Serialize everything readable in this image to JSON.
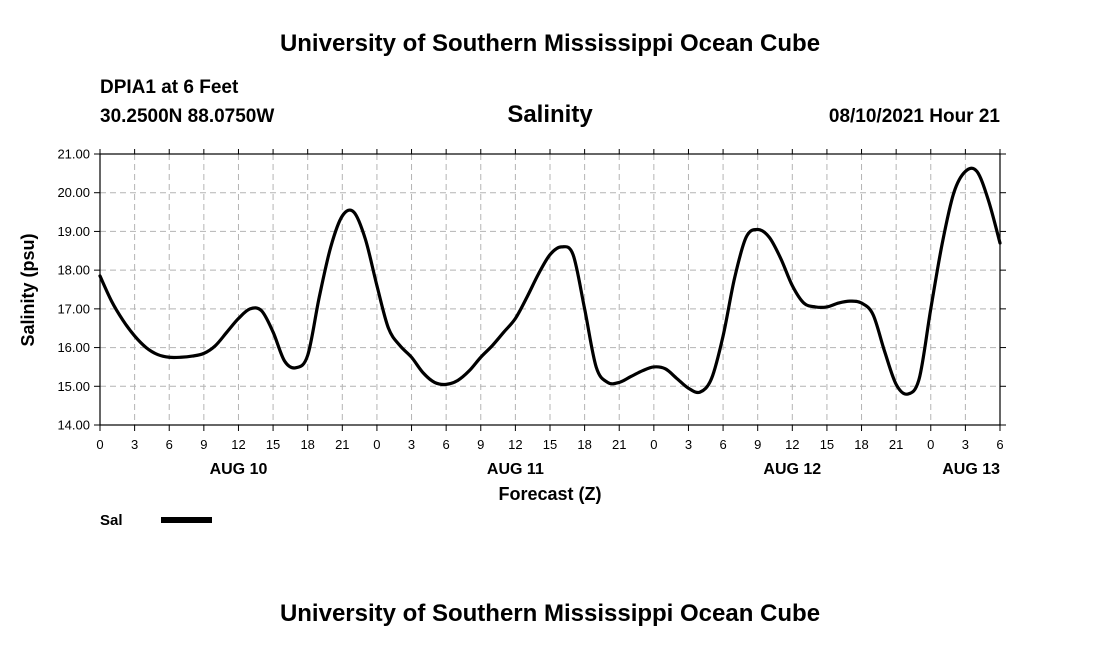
{
  "header": {
    "title": "University of Southern Mississippi Ocean Cube",
    "station": "DPIA1 at 6 Feet",
    "coordinates": "30.2500N  88.0750W",
    "chart_title": "Salinity",
    "timestamp": "08/10/2021 Hour 21"
  },
  "footer": {
    "title": "University of Southern Mississippi Ocean Cube"
  },
  "legend": {
    "label": "Sal"
  },
  "colors": {
    "line": "#000000",
    "grid": "#b4b4b4",
    "axis": "#000000",
    "background": "#ffffff"
  },
  "chart_data": {
    "type": "line",
    "title": "Salinity",
    "xlabel": "Forecast (Z)",
    "ylabel": "Salinity (psu)",
    "xlim": [
      0,
      78
    ],
    "ylim": [
      14.0,
      21.0
    ],
    "y_ticks": [
      "14.00",
      "15.00",
      "16.00",
      "17.00",
      "18.00",
      "19.00",
      "20.00",
      "21.00"
    ],
    "x_ticks": [
      {
        "x": 0,
        "label": "0"
      },
      {
        "x": 3,
        "label": "3"
      },
      {
        "x": 6,
        "label": "6"
      },
      {
        "x": 9,
        "label": "9"
      },
      {
        "x": 12,
        "label": "12"
      },
      {
        "x": 15,
        "label": "15"
      },
      {
        "x": 18,
        "label": "18"
      },
      {
        "x": 21,
        "label": "21"
      },
      {
        "x": 24,
        "label": "0"
      },
      {
        "x": 27,
        "label": "3"
      },
      {
        "x": 30,
        "label": "6"
      },
      {
        "x": 33,
        "label": "9"
      },
      {
        "x": 36,
        "label": "12"
      },
      {
        "x": 39,
        "label": "15"
      },
      {
        "x": 42,
        "label": "18"
      },
      {
        "x": 45,
        "label": "21"
      },
      {
        "x": 48,
        "label": "0"
      },
      {
        "x": 51,
        "label": "3"
      },
      {
        "x": 54,
        "label": "6"
      },
      {
        "x": 57,
        "label": "9"
      },
      {
        "x": 60,
        "label": "12"
      },
      {
        "x": 63,
        "label": "15"
      },
      {
        "x": 66,
        "label": "18"
      },
      {
        "x": 69,
        "label": "21"
      },
      {
        "x": 72,
        "label": "0"
      },
      {
        "x": 75,
        "label": "3"
      },
      {
        "x": 78,
        "label": "6"
      }
    ],
    "day_labels": [
      {
        "x": 12,
        "label": "AUG 10"
      },
      {
        "x": 36,
        "label": "AUG 11"
      },
      {
        "x": 60,
        "label": "AUG 12"
      },
      {
        "x": 75.5,
        "label": "AUG 13"
      }
    ],
    "grid": true,
    "series": [
      {
        "name": "Sal",
        "x": [
          0,
          1,
          2,
          3,
          4,
          5,
          6,
          7,
          8,
          9,
          10,
          11,
          12,
          13,
          14,
          15,
          16,
          17,
          18,
          19,
          20,
          21,
          22,
          23,
          24,
          25,
          26,
          27,
          28,
          29,
          30,
          31,
          32,
          33,
          34,
          35,
          36,
          37,
          38,
          39,
          40,
          41,
          42,
          43,
          44,
          45,
          46,
          47,
          48,
          49,
          50,
          51,
          52,
          53,
          54,
          55,
          56,
          57,
          58,
          59,
          60,
          61,
          62,
          63,
          64,
          65,
          66,
          67,
          68,
          69,
          70,
          71,
          72,
          73,
          74,
          75,
          76,
          77,
          78
        ],
        "values": [
          17.85,
          17.2,
          16.7,
          16.3,
          16.0,
          15.82,
          15.75,
          15.75,
          15.78,
          15.85,
          16.05,
          16.4,
          16.75,
          17.0,
          16.95,
          16.4,
          15.65,
          15.48,
          15.8,
          17.3,
          18.6,
          19.4,
          19.5,
          18.8,
          17.6,
          16.5,
          16.05,
          15.75,
          15.35,
          15.1,
          15.05,
          15.15,
          15.4,
          15.75,
          16.05,
          16.4,
          16.75,
          17.3,
          17.9,
          18.4,
          18.6,
          18.4,
          17.0,
          15.5,
          15.1,
          15.1,
          15.25,
          15.4,
          15.5,
          15.45,
          15.2,
          14.95,
          14.85,
          15.2,
          16.3,
          17.8,
          18.85,
          19.05,
          18.85,
          18.3,
          17.6,
          17.15,
          17.05,
          17.05,
          17.15,
          17.2,
          17.15,
          16.85,
          15.9,
          15.05,
          14.8,
          15.2,
          17.0,
          18.7,
          20.0,
          20.55,
          20.55,
          19.8,
          18.7
        ]
      }
    ]
  }
}
